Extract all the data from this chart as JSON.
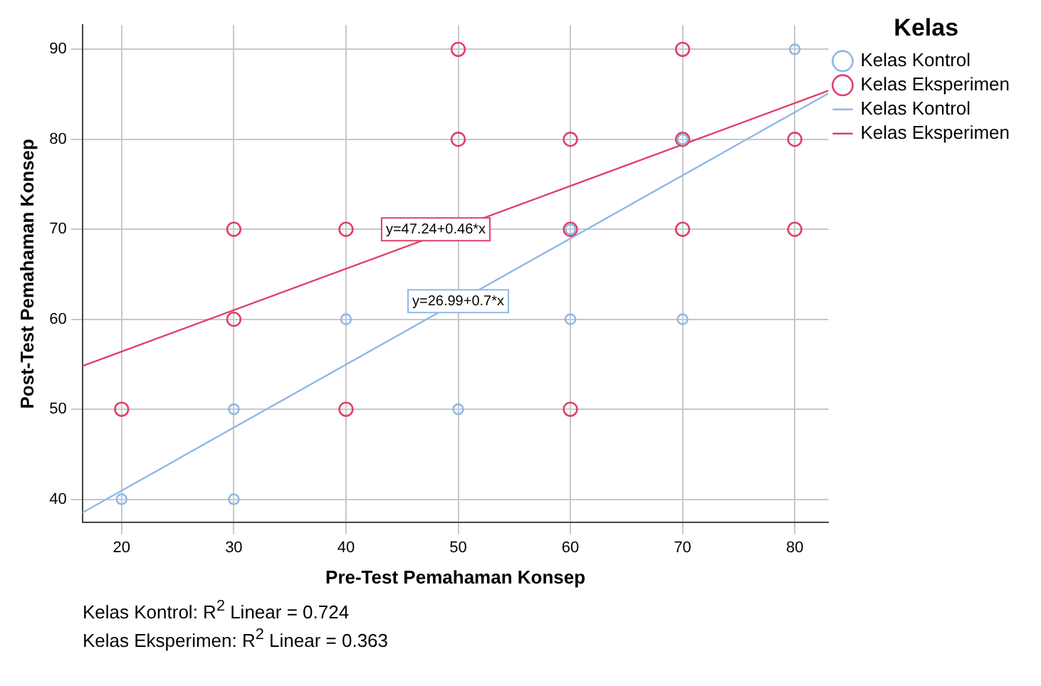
{
  "chart_data": {
    "type": "scatter",
    "xlabel": "Pre-Test Pemahaman Konsep",
    "ylabel": "Post-Test Pemahaman Konsep",
    "legend_title": "Kelas",
    "legend": "top right",
    "grid": true,
    "marker": "circle",
    "xlim": [
      16.5,
      83
    ],
    "xticks": [
      20,
      30,
      40,
      50,
      60,
      70,
      80
    ],
    "ylim": [
      37.4,
      92.7
    ],
    "yticks": [
      40,
      50,
      60,
      70,
      80,
      90
    ],
    "series": [
      {
        "name": "Kelas Kontrol",
        "color": "#8fb8e8",
        "x": [
          20,
          30,
          30,
          40,
          50,
          60,
          60,
          70,
          70,
          80
        ],
        "values": [
          40,
          40,
          50,
          60,
          50,
          60,
          70,
          60,
          80,
          90
        ]
      },
      {
        "name": "Kelas Eksperimen",
        "color": "#e0406a",
        "x": [
          20,
          30,
          30,
          40,
          40,
          50,
          50,
          60,
          60,
          60,
          70,
          70,
          70,
          80,
          80
        ],
        "values": [
          50,
          60,
          70,
          70,
          50,
          90,
          80,
          80,
          70,
          50,
          90,
          80,
          70,
          80,
          70
        ]
      },
      {
        "name": "Kelas Kontrol",
        "type": "line",
        "marker": "none",
        "color": "#8fb8e8",
        "x": [
          16.5,
          83
        ],
        "values": [
          38.5,
          85.1
        ]
      },
      {
        "name": "Kelas Eksperimen",
        "type": "line",
        "marker": "none",
        "color": "#e0406a",
        "x": [
          16.5,
          83
        ],
        "values": [
          54.8,
          85.4
        ]
      }
    ],
    "annotations": [
      {
        "text": "y=47.24+0.46*x",
        "x": 48,
        "y": 70
      },
      {
        "text": "y=26.99+0.7*x",
        "x": 50,
        "y": 62
      },
      "Kelas Kontrol: R$^{2}$ Linear = 0.724",
      "Kelas Eksperimen: R$^{2}$ Linear = 0.363"
    ]
  }
}
